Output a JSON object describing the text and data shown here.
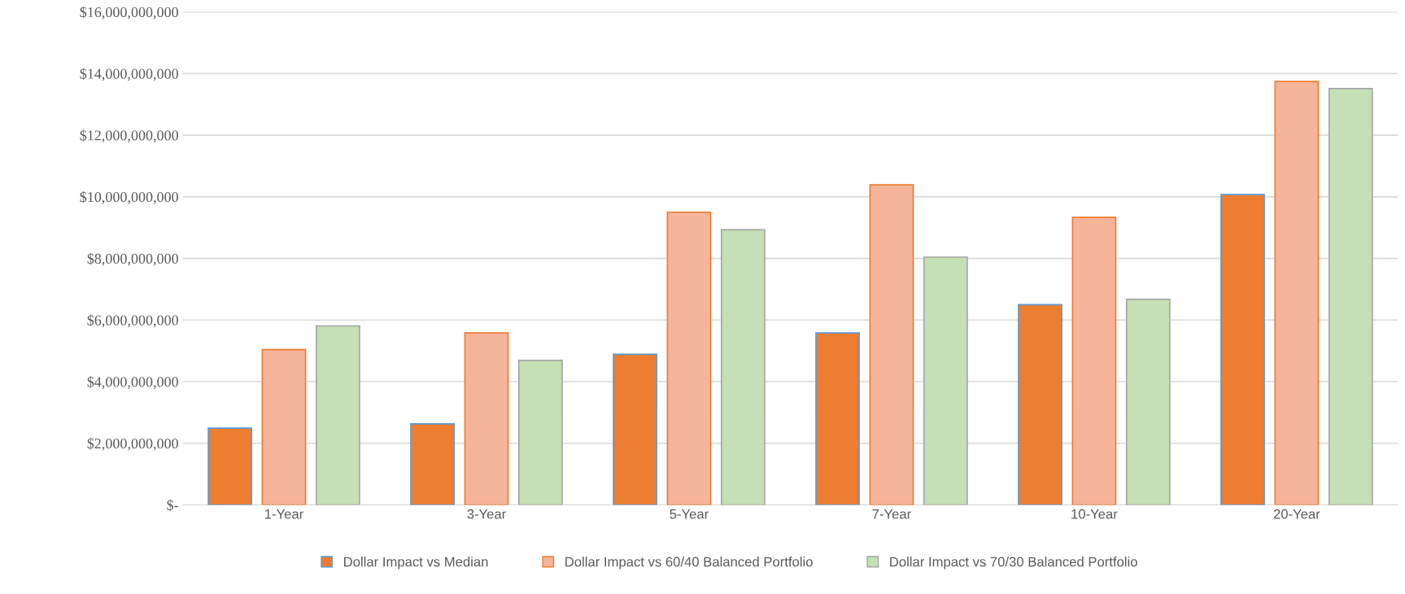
{
  "chart_data": {
    "type": "bar",
    "categories": [
      "1-Year",
      "3-Year",
      "5-Year",
      "7-Year",
      "10-Year",
      "20-Year"
    ],
    "series": [
      {
        "name": "Dollar Impact vs Median",
        "color": "#ed7d31",
        "values": [
          2490000000,
          2630000000,
          4890000000,
          5580000000,
          6500000000,
          10070000000
        ]
      },
      {
        "name": "Dollar Impact vs 60/40 Balanced Portfolio",
        "color": "#f6b49a",
        "values": [
          5040000000,
          5580000000,
          9500000000,
          10390000000,
          9330000000,
          13740000000
        ]
      },
      {
        "name": "Dollar Impact vs 70/30 Balanced Portfolio",
        "color": "#c5e0b4",
        "values": [
          5810000000,
          4690000000,
          8930000000,
          8040000000,
          6670000000,
          13510000000
        ]
      }
    ],
    "ylim": [
      0,
      16000000000
    ],
    "yticks": [
      {
        "value": 0,
        "label": "$-"
      },
      {
        "value": 2000000000,
        "label": "$2,000,000,000"
      },
      {
        "value": 4000000000,
        "label": "$4,000,000,000"
      },
      {
        "value": 6000000000,
        "label": "$6,000,000,000"
      },
      {
        "value": 8000000000,
        "label": "$8,000,000,000"
      },
      {
        "value": 10000000000,
        "label": "$10,000,000,000"
      },
      {
        "value": 12000000000,
        "label": "$12,000,000,000"
      },
      {
        "value": 14000000000,
        "label": "$14,000,000,000"
      },
      {
        "value": 16000000000,
        "label": "$16,000,000,000"
      }
    ],
    "grid": "y",
    "legend": "bottom"
  }
}
